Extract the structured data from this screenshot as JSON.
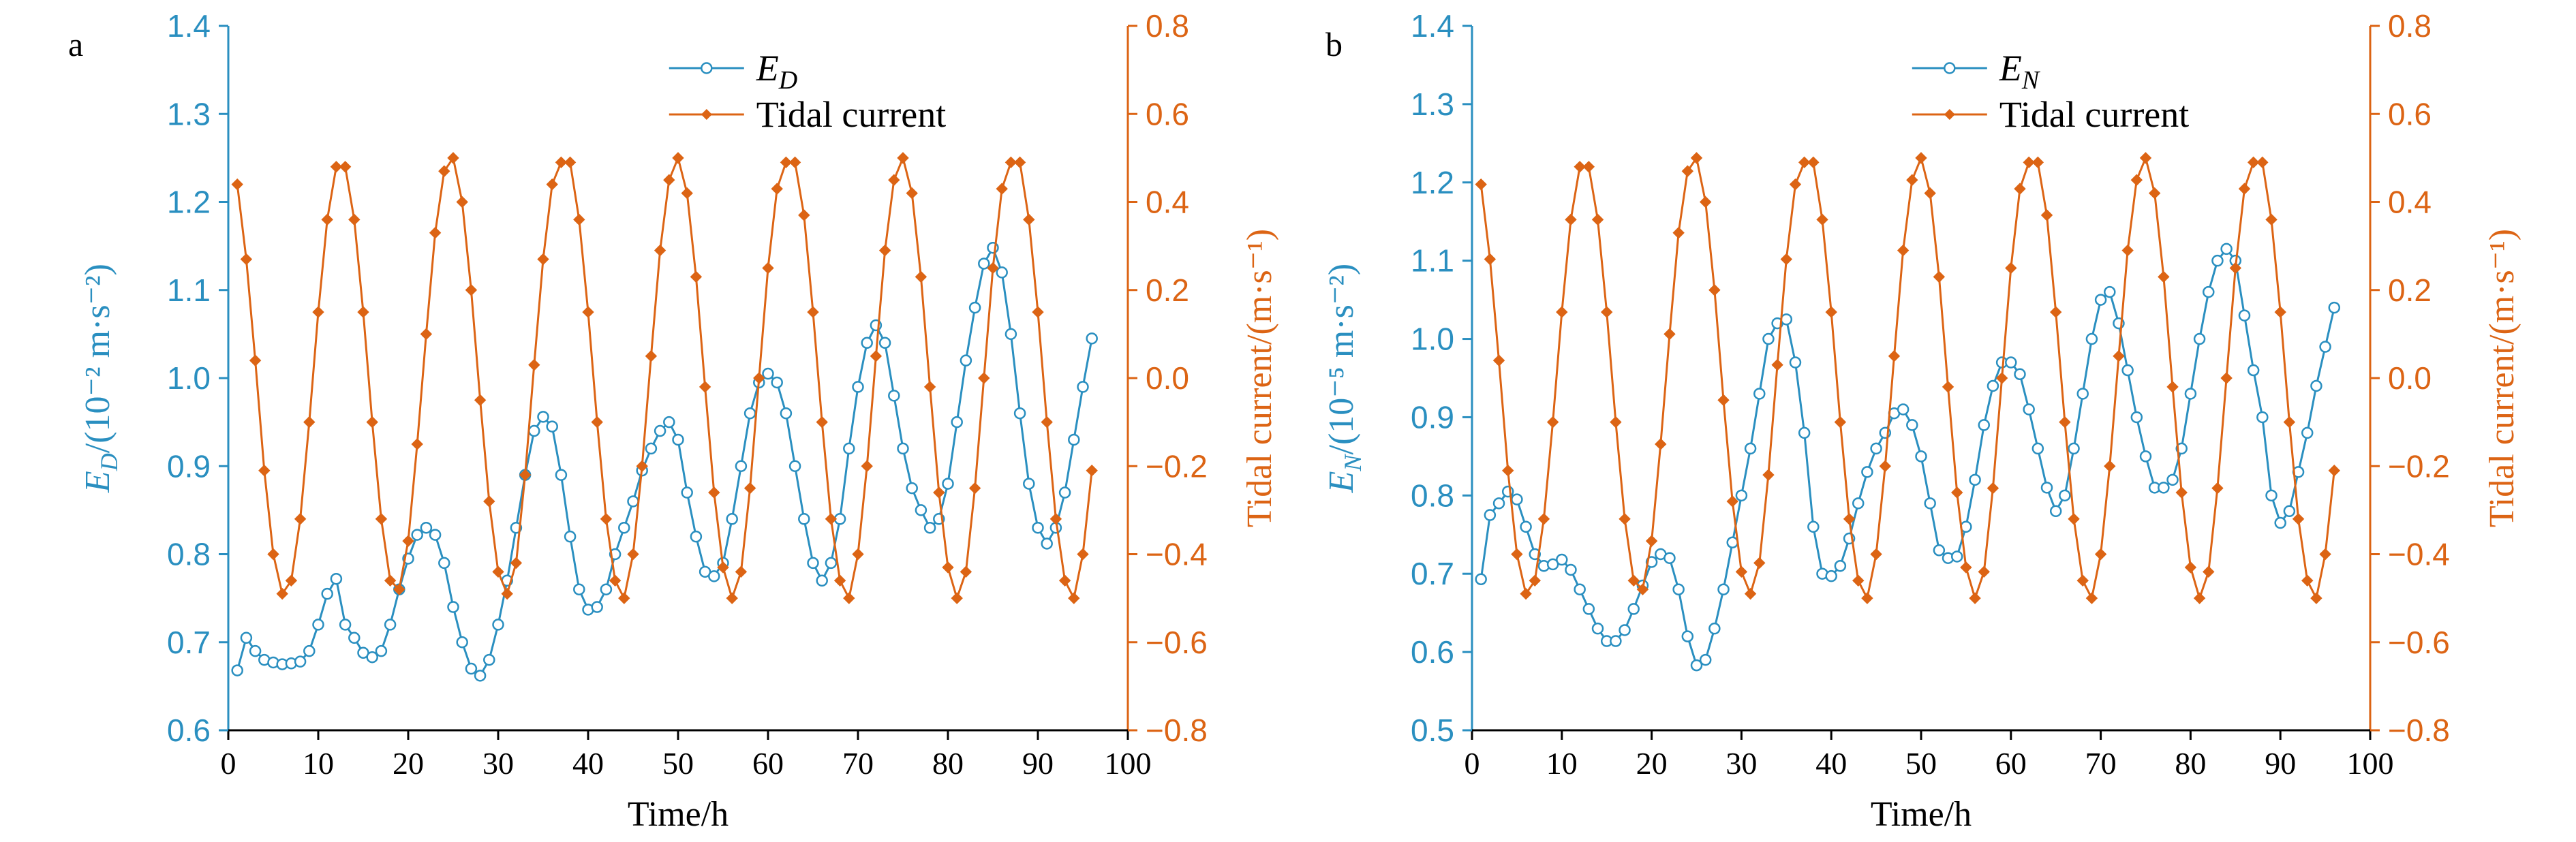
{
  "chart_data": [
    {
      "type": "line",
      "panel_label": "a",
      "xlabel": "Time/h",
      "ylabel_left": "E_D/(10⁻² m·s⁻²)",
      "ylabel_left_parts": {
        "base": "E",
        "sub": "D",
        "rest": "/(10⁻² m·s⁻²)"
      },
      "ylabel_right": "Tidal current/(m·s⁻¹)",
      "xlim": [
        0,
        100
      ],
      "ylim_left": [
        0.6,
        1.4
      ],
      "ylim_right": [
        -0.8,
        0.8
      ],
      "xticks": [
        0,
        10,
        20,
        30,
        40,
        50,
        60,
        70,
        80,
        90,
        100
      ],
      "yticks_left": [
        "0.6",
        "0.7",
        "0.8",
        "0.9",
        "1.0",
        "1.1",
        "1.2",
        "1.3",
        "1.4"
      ],
      "yticks_right": [
        "−0.8",
        "−0.6",
        "−0.4",
        "−0.2",
        "0.0",
        "0.2",
        "0.4",
        "0.6",
        "0.8"
      ],
      "grid": false,
      "legend_placement": "top-center",
      "series": [
        {
          "name": "E_D",
          "name_parts": {
            "base": "E",
            "sub": "D"
          },
          "axis": "left",
          "color": "#2a8fc0",
          "marker": "open-circle",
          "x": [
            1,
            2,
            3,
            4,
            5,
            6,
            7,
            8,
            9,
            10,
            11,
            12,
            13,
            14,
            15,
            16,
            17,
            18,
            19,
            20,
            21,
            22,
            23,
            24,
            25,
            26,
            27,
            28,
            29,
            30,
            31,
            32,
            33,
            34,
            35,
            36,
            37,
            38,
            39,
            40,
            41,
            42,
            43,
            44,
            45,
            46,
            47,
            48,
            49,
            50,
            51,
            52,
            53,
            54,
            55,
            56,
            57,
            58,
            59,
            60,
            61,
            62,
            63,
            64,
            65,
            66,
            67,
            68,
            69,
            70,
            71,
            72,
            73,
            74,
            75,
            76,
            77,
            78,
            79,
            80,
            81,
            82,
            83,
            84,
            85,
            86,
            87,
            88,
            89,
            90,
            91,
            92,
            93,
            94,
            95,
            96
          ],
          "values": [
            0.668,
            0.705,
            0.69,
            0.68,
            0.677,
            0.675,
            0.676,
            0.678,
            0.69,
            0.72,
            0.755,
            0.772,
            0.72,
            0.705,
            0.688,
            0.683,
            0.69,
            0.72,
            0.76,
            0.795,
            0.822,
            0.83,
            0.822,
            0.79,
            0.74,
            0.7,
            0.67,
            0.662,
            0.68,
            0.72,
            0.77,
            0.83,
            0.89,
            0.94,
            0.956,
            0.945,
            0.89,
            0.82,
            0.76,
            0.737,
            0.74,
            0.76,
            0.8,
            0.83,
            0.86,
            0.895,
            0.92,
            0.94,
            0.95,
            0.93,
            0.87,
            0.82,
            0.78,
            0.775,
            0.79,
            0.84,
            0.9,
            0.96,
            0.995,
            1.005,
            0.995,
            0.96,
            0.9,
            0.84,
            0.79,
            0.77,
            0.79,
            0.84,
            0.92,
            0.99,
            1.04,
            1.06,
            1.04,
            0.98,
            0.92,
            0.875,
            0.85,
            0.83,
            0.84,
            0.88,
            0.95,
            1.02,
            1.08,
            1.13,
            1.148,
            1.12,
            1.05,
            0.96,
            0.88,
            0.83,
            0.812,
            0.83,
            0.87,
            0.93,
            0.99,
            1.045
          ]
        },
        {
          "name": "Tidal current",
          "axis": "right",
          "color": "#dc6414",
          "marker": "filled-diamond",
          "x": [
            1,
            2,
            3,
            4,
            5,
            6,
            7,
            8,
            9,
            10,
            11,
            12,
            13,
            14,
            15,
            16,
            17,
            18,
            19,
            20,
            21,
            22,
            23,
            24,
            25,
            26,
            27,
            28,
            29,
            30,
            31,
            32,
            33,
            34,
            35,
            36,
            37,
            38,
            39,
            40,
            41,
            42,
            43,
            44,
            45,
            46,
            47,
            48,
            49,
            50,
            51,
            52,
            53,
            54,
            55,
            56,
            57,
            58,
            59,
            60,
            61,
            62,
            63,
            64,
            65,
            66,
            67,
            68,
            69,
            70,
            71,
            72,
            73,
            74,
            75,
            76,
            77,
            78,
            79,
            80,
            81,
            82,
            83,
            84,
            85,
            86,
            87,
            88,
            89,
            90,
            91,
            92,
            93,
            94,
            95,
            96
          ],
          "values": [
            0.44,
            0.27,
            0.04,
            -0.21,
            -0.4,
            -0.49,
            -0.46,
            -0.32,
            -0.1,
            0.15,
            0.36,
            0.48,
            0.48,
            0.36,
            0.15,
            -0.1,
            -0.32,
            -0.46,
            -0.48,
            -0.37,
            -0.15,
            0.1,
            0.33,
            0.47,
            0.5,
            0.4,
            0.2,
            -0.05,
            -0.28,
            -0.44,
            -0.49,
            -0.42,
            -0.22,
            0.03,
            0.27,
            0.44,
            0.49,
            0.49,
            0.36,
            0.15,
            -0.1,
            -0.32,
            -0.46,
            -0.5,
            -0.4,
            -0.2,
            0.05,
            0.29,
            0.45,
            0.5,
            0.42,
            0.23,
            -0.02,
            -0.26,
            -0.43,
            -0.5,
            -0.44,
            -0.25,
            0.0,
            0.25,
            0.43,
            0.49,
            0.49,
            0.37,
            0.15,
            -0.1,
            -0.32,
            -0.46,
            -0.5,
            -0.4,
            -0.2,
            0.05,
            0.29,
            0.45,
            0.5,
            0.42,
            0.23,
            -0.02,
            -0.26,
            -0.43,
            -0.5,
            -0.44,
            -0.25,
            0.0,
            0.25,
            0.43,
            0.49,
            0.49,
            0.36,
            0.15,
            -0.1,
            -0.32,
            -0.46,
            -0.5,
            -0.4,
            -0.21
          ]
        }
      ]
    },
    {
      "type": "line",
      "panel_label": "b",
      "xlabel": "Time/h",
      "ylabel_left": "E_N/(10⁻⁵ m·s⁻²)",
      "ylabel_left_parts": {
        "base": "E",
        "sub": "N",
        "rest": "/(10⁻⁵ m·s⁻²)"
      },
      "ylabel_right": "Tidal current/(m·s⁻¹)",
      "xlim": [
        0,
        100
      ],
      "ylim_left": [
        0.5,
        1.4
      ],
      "ylim_right": [
        -0.8,
        0.8
      ],
      "xticks": [
        0,
        10,
        20,
        30,
        40,
        50,
        60,
        70,
        80,
        90,
        100
      ],
      "yticks_left": [
        "0.5",
        "0.6",
        "0.7",
        "0.8",
        "0.9",
        "1.0",
        "1.1",
        "1.2",
        "1.3",
        "1.4"
      ],
      "yticks_right": [
        "−0.8",
        "−0.6",
        "−0.4",
        "−0.2",
        "0.0",
        "0.2",
        "0.4",
        "0.6",
        "0.8"
      ],
      "grid": false,
      "legend_placement": "top-center",
      "series": [
        {
          "name": "E_N",
          "name_parts": {
            "base": "E",
            "sub": "N"
          },
          "axis": "left",
          "color": "#2a8fc0",
          "marker": "open-circle",
          "x": [
            1,
            2,
            3,
            4,
            5,
            6,
            7,
            8,
            9,
            10,
            11,
            12,
            13,
            14,
            15,
            16,
            17,
            18,
            19,
            20,
            21,
            22,
            23,
            24,
            25,
            26,
            27,
            28,
            29,
            30,
            31,
            32,
            33,
            34,
            35,
            36,
            37,
            38,
            39,
            40,
            41,
            42,
            43,
            44,
            45,
            46,
            47,
            48,
            49,
            50,
            51,
            52,
            53,
            54,
            55,
            56,
            57,
            58,
            59,
            60,
            61,
            62,
            63,
            64,
            65,
            66,
            67,
            68,
            69,
            70,
            71,
            72,
            73,
            74,
            75,
            76,
            77,
            78,
            79,
            80,
            81,
            82,
            83,
            84,
            85,
            86,
            87,
            88,
            89,
            90,
            91,
            92,
            93,
            94,
            95,
            96
          ],
          "values": [
            0.693,
            0.775,
            0.79,
            0.805,
            0.795,
            0.76,
            0.725,
            0.71,
            0.712,
            0.718,
            0.705,
            0.68,
            0.655,
            0.63,
            0.614,
            0.614,
            0.628,
            0.655,
            0.685,
            0.715,
            0.725,
            0.72,
            0.68,
            0.62,
            0.583,
            0.59,
            0.63,
            0.68,
            0.74,
            0.8,
            0.86,
            0.93,
            1.0,
            1.02,
            1.025,
            0.97,
            0.88,
            0.76,
            0.7,
            0.697,
            0.71,
            0.745,
            0.79,
            0.83,
            0.86,
            0.88,
            0.905,
            0.91,
            0.89,
            0.85,
            0.79,
            0.73,
            0.72,
            0.722,
            0.76,
            0.82,
            0.89,
            0.94,
            0.97,
            0.97,
            0.955,
            0.91,
            0.86,
            0.81,
            0.78,
            0.8,
            0.86,
            0.93,
            1.0,
            1.05,
            1.06,
            1.02,
            0.96,
            0.9,
            0.85,
            0.81,
            0.81,
            0.82,
            0.86,
            0.93,
            1.0,
            1.06,
            1.1,
            1.115,
            1.1,
            1.03,
            0.96,
            0.9,
            0.8,
            0.765,
            0.78,
            0.83,
            0.88,
            0.94,
            0.99,
            1.04
          ]
        },
        {
          "name": "Tidal current",
          "axis": "right",
          "color": "#dc6414",
          "marker": "filled-diamond",
          "x": [
            1,
            2,
            3,
            4,
            5,
            6,
            7,
            8,
            9,
            10,
            11,
            12,
            13,
            14,
            15,
            16,
            17,
            18,
            19,
            20,
            21,
            22,
            23,
            24,
            25,
            26,
            27,
            28,
            29,
            30,
            31,
            32,
            33,
            34,
            35,
            36,
            37,
            38,
            39,
            40,
            41,
            42,
            43,
            44,
            45,
            46,
            47,
            48,
            49,
            50,
            51,
            52,
            53,
            54,
            55,
            56,
            57,
            58,
            59,
            60,
            61,
            62,
            63,
            64,
            65,
            66,
            67,
            68,
            69,
            70,
            71,
            72,
            73,
            74,
            75,
            76,
            77,
            78,
            79,
            80,
            81,
            82,
            83,
            84,
            85,
            86,
            87,
            88,
            89,
            90,
            91,
            92,
            93,
            94,
            95,
            96
          ],
          "values": [
            0.44,
            0.27,
            0.04,
            -0.21,
            -0.4,
            -0.49,
            -0.46,
            -0.32,
            -0.1,
            0.15,
            0.36,
            0.48,
            0.48,
            0.36,
            0.15,
            -0.1,
            -0.32,
            -0.46,
            -0.48,
            -0.37,
            -0.15,
            0.1,
            0.33,
            0.47,
            0.5,
            0.4,
            0.2,
            -0.05,
            -0.28,
            -0.44,
            -0.49,
            -0.42,
            -0.22,
            0.03,
            0.27,
            0.44,
            0.49,
            0.49,
            0.36,
            0.15,
            -0.1,
            -0.32,
            -0.46,
            -0.5,
            -0.4,
            -0.2,
            0.05,
            0.29,
            0.45,
            0.5,
            0.42,
            0.23,
            -0.02,
            -0.26,
            -0.43,
            -0.5,
            -0.44,
            -0.25,
            0.0,
            0.25,
            0.43,
            0.49,
            0.49,
            0.37,
            0.15,
            -0.1,
            -0.32,
            -0.46,
            -0.5,
            -0.4,
            -0.2,
            0.05,
            0.29,
            0.45,
            0.5,
            0.42,
            0.23,
            -0.02,
            -0.26,
            -0.43,
            -0.5,
            -0.44,
            -0.25,
            0.0,
            0.25,
            0.43,
            0.49,
            0.49,
            0.36,
            0.15,
            -0.1,
            -0.32,
            -0.46,
            -0.5,
            -0.4,
            -0.21
          ]
        }
      ]
    }
  ]
}
